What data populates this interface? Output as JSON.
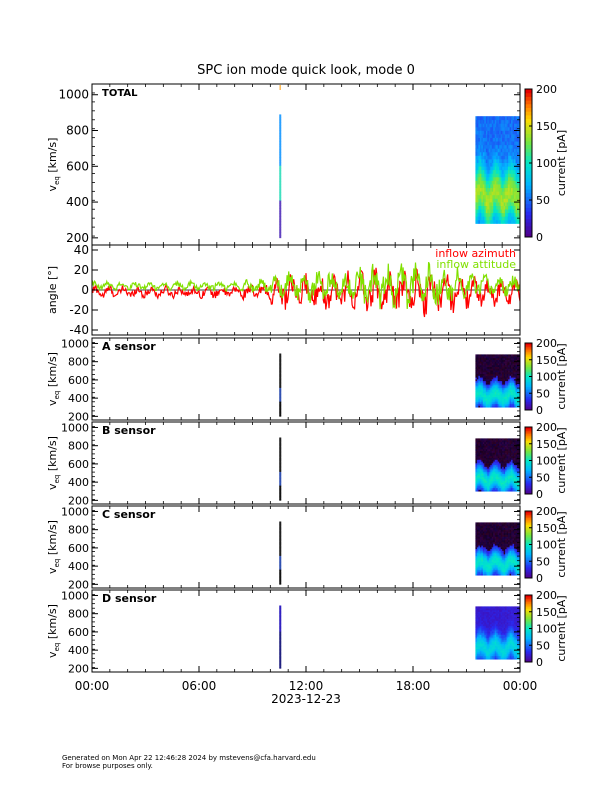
{
  "title": "SPC ion mode quick look, mode 0",
  "footer": {
    "line1": "Generated on Mon Apr 22 12:46:28 2024 by mstevens@cfa.harvard.edu",
    "line2": "For browse purposes only."
  },
  "chart_data": [
    {
      "type": "heatmap",
      "panel": "TOTAL",
      "label": "TOTAL",
      "ylabel_main": "v",
      "ylabel_sub": "eq",
      "ylabel_unit": "[km/s]",
      "ylim": [
        160,
        1060
      ],
      "yticks": [
        200,
        400,
        600,
        800,
        1000
      ],
      "colorbar": {
        "label": "current [pA]",
        "range": [
          0,
          200
        ],
        "ticks": [
          0,
          50,
          100,
          150,
          200
        ]
      },
      "data_blocks": [
        {
          "x_start_hour": 10.5,
          "x_end_hour": 10.6,
          "v_min": 200,
          "v_max": 880,
          "description": "narrow spike"
        },
        {
          "x_start_hour": 21.5,
          "x_end_hour": 24.0,
          "v_min": 280,
          "v_max": 880,
          "peak_v": 430,
          "description": "dense block"
        }
      ]
    },
    {
      "type": "line",
      "panel": "angle",
      "ylabel": "angle [°]",
      "ylim": [
        -45,
        45
      ],
      "yticks": [
        -40,
        -20,
        0,
        20,
        40
      ],
      "series": [
        {
          "name": "inflow azimuth",
          "color": "#ff0000",
          "amplitude_by_hour": [
            [
              0,
              6
            ],
            [
              8,
              5
            ],
            [
              10,
              10
            ],
            [
              11,
              15
            ],
            [
              16,
              20
            ],
            [
              19,
              20
            ],
            [
              22,
              12
            ],
            [
              24,
              10
            ]
          ],
          "mean": -2
        },
        {
          "name": "inflow attitude",
          "color": "#80e000",
          "amplitude_by_hour": [
            [
              0,
              4
            ],
            [
              8,
              4
            ],
            [
              10,
              8
            ],
            [
              11,
              12
            ],
            [
              16,
              18
            ],
            [
              19,
              20
            ],
            [
              22,
              10
            ],
            [
              24,
              8
            ]
          ],
          "mean": 4
        }
      ]
    },
    {
      "type": "heatmap",
      "panel": "A",
      "label": "A sensor",
      "ylabel_main": "v",
      "ylabel_sub": "eq",
      "ylabel_unit": "[km/s]",
      "ylim": [
        160,
        1060
      ],
      "yticks": [
        200,
        400,
        600,
        800,
        1000
      ],
      "colorbar": {
        "label": "current [pA]",
        "range": [
          0,
          200
        ],
        "ticks": [
          0,
          50,
          100,
          150,
          200
        ]
      },
      "data_blocks": [
        {
          "x_start_hour": 10.5,
          "x_end_hour": 10.6,
          "v_min": 200,
          "v_max": 880
        },
        {
          "x_start_hour": 21.5,
          "x_end_hour": 24.0,
          "v_min": 300,
          "v_max": 880,
          "peak_v": 420
        }
      ]
    },
    {
      "type": "heatmap",
      "panel": "B",
      "label": "B sensor",
      "ylabel_main": "v",
      "ylabel_sub": "eq",
      "ylabel_unit": "[km/s]",
      "ylim": [
        160,
        1060
      ],
      "yticks": [
        200,
        400,
        600,
        800,
        1000
      ],
      "colorbar": {
        "label": "current [pA]",
        "range": [
          0,
          200
        ],
        "ticks": [
          0,
          50,
          100,
          150,
          200
        ]
      },
      "data_blocks": [
        {
          "x_start_hour": 10.5,
          "x_end_hour": 10.6,
          "v_min": 200,
          "v_max": 880
        },
        {
          "x_start_hour": 21.5,
          "x_end_hour": 24.0,
          "v_min": 300,
          "v_max": 880,
          "peak_v": 420
        }
      ]
    },
    {
      "type": "heatmap",
      "panel": "C",
      "label": "C sensor",
      "ylabel_main": "v",
      "ylabel_sub": "eq",
      "ylabel_unit": "[km/s]",
      "ylim": [
        160,
        1060
      ],
      "yticks": [
        200,
        400,
        600,
        800,
        1000
      ],
      "colorbar": {
        "label": "current [pA]",
        "range": [
          0,
          200
        ],
        "ticks": [
          0,
          50,
          100,
          150,
          200
        ]
      },
      "data_blocks": [
        {
          "x_start_hour": 10.5,
          "x_end_hour": 10.6,
          "v_min": 200,
          "v_max": 880
        },
        {
          "x_start_hour": 21.5,
          "x_end_hour": 24.0,
          "v_min": 300,
          "v_max": 880,
          "peak_v": 420
        }
      ]
    },
    {
      "type": "heatmap",
      "panel": "D",
      "label": "D sensor",
      "ylabel_main": "v",
      "ylabel_sub": "eq",
      "ylabel_unit": "[km/s]",
      "ylim": [
        160,
        1060
      ],
      "yticks": [
        200,
        400,
        600,
        800,
        1000
      ],
      "colorbar": {
        "label": "current [pA]",
        "range": [
          0,
          200
        ],
        "ticks": [
          0,
          50,
          100,
          150,
          200
        ]
      },
      "data_blocks": [
        {
          "x_start_hour": 10.5,
          "x_end_hour": 10.6,
          "v_min": 200,
          "v_max": 880
        },
        {
          "x_start_hour": 21.5,
          "x_end_hour": 24.0,
          "v_min": 300,
          "v_max": 880,
          "peak_v": 420
        }
      ]
    }
  ],
  "x_axis": {
    "ticks": [
      "00:00",
      "06:00",
      "12:00",
      "18:00",
      "00:00"
    ],
    "tick_hours": [
      0,
      6,
      12,
      18,
      24
    ],
    "date_label": "2023-12-23"
  }
}
